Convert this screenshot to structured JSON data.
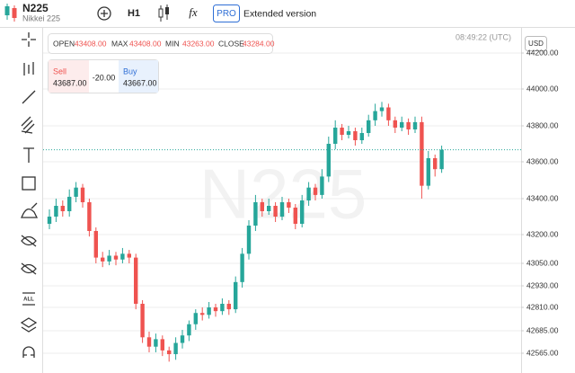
{
  "ui": {
    "symbol": "N225",
    "symbol_name": "Nikkei 225",
    "timeframe": "H1",
    "fx": "fx",
    "pro": "PRO",
    "extended": "Extended version",
    "open_label": "OPEN",
    "open": "43408.00",
    "max_label": "MAX",
    "max": "43408.00",
    "min_label": "MIN",
    "min": "43263.00",
    "close_label": "CLOSE",
    "close": "43284.00",
    "time": "08:49:22 (UTC)",
    "sell_label": "Sell",
    "sell": "43687.00",
    "spread": "-20.00",
    "buy_label": "Buy",
    "buy": "43667.00",
    "currency": "USD",
    "watermark": "N225",
    "tool_all": "ALL"
  },
  "chart_data": {
    "type": "candlestick",
    "up_color": "#26a69a",
    "down_color": "#ef5350",
    "grid": true,
    "yticks": [
      {
        "value": 44200,
        "label": "44200.00"
      },
      {
        "value": 44000,
        "label": "44000.00"
      },
      {
        "value": 43800,
        "label": "43800.00"
      },
      {
        "value": 43600,
        "label": "43600.00"
      },
      {
        "value": 43400,
        "label": "43400.00"
      },
      {
        "value": 43200,
        "label": "43200.00"
      },
      {
        "value": 43050,
        "label": "43050.00"
      },
      {
        "value": 42930,
        "label": "42930.00"
      },
      {
        "value": 42810,
        "label": "42810.00"
      },
      {
        "value": 42685,
        "label": "42685.00"
      },
      {
        "value": 42565,
        "label": "42565.00"
      }
    ],
    "open": [
      43260,
      43300,
      43360,
      43330,
      43410,
      43460,
      43380,
      43220,
      43080,
      43060,
      43090,
      43070,
      43100,
      43080,
      42830,
      42650,
      42600,
      42640,
      42580,
      42560,
      42620,
      42660,
      42720,
      42780,
      42770,
      42810,
      42790,
      42830,
      42800,
      42950,
      43100,
      43250,
      43380,
      43330,
      43360,
      43300,
      43380,
      43350,
      43260,
      43390,
      43460,
      43420,
      43520,
      43700,
      43790,
      43750,
      43770,
      43720,
      43760,
      43830,
      43880,
      43900,
      43830,
      43790,
      43820,
      43780,
      43820,
      43470,
      43620,
      43560
    ],
    "high": [
      43340,
      43400,
      43390,
      43450,
      43490,
      43480,
      43400,
      43240,
      43110,
      43120,
      43110,
      43130,
      43120,
      43100,
      42850,
      42680,
      42670,
      42660,
      42600,
      42650,
      42690,
      42740,
      42800,
      42810,
      42840,
      42830,
      42860,
      42850,
      42980,
      43130,
      43280,
      43420,
      43400,
      43400,
      43380,
      43410,
      43400,
      43370,
      43420,
      43490,
      43480,
      43560,
      43740,
      43830,
      43810,
      43800,
      43790,
      43790,
      43860,
      43920,
      43930,
      43920,
      43850,
      43850,
      43840,
      43850,
      43850,
      43660,
      43640,
      43690
    ],
    "low": [
      43230,
      43270,
      43300,
      43300,
      43380,
      43350,
      43190,
      43050,
      43030,
      43040,
      43040,
      43050,
      43050,
      42800,
      42620,
      42570,
      42570,
      42550,
      42520,
      42530,
      42590,
      42630,
      42690,
      42740,
      42750,
      42760,
      42770,
      42770,
      42780,
      42920,
      43070,
      43220,
      43300,
      43310,
      43270,
      43280,
      43320,
      43230,
      43240,
      43360,
      43390,
      43400,
      43490,
      43670,
      43720,
      43730,
      43690,
      43700,
      43740,
      43800,
      43850,
      43800,
      43760,
      43770,
      43750,
      43760,
      43400,
      43450,
      43520,
      43540
    ],
    "close": [
      43300,
      43360,
      43330,
      43410,
      43460,
      43380,
      43220,
      43080,
      43060,
      43090,
      43070,
      43100,
      43080,
      42830,
      42650,
      42600,
      42640,
      42580,
      42560,
      42620,
      42660,
      42720,
      42780,
      42770,
      42810,
      42790,
      42830,
      42800,
      42950,
      43100,
      43250,
      43380,
      43330,
      43360,
      43300,
      43380,
      43350,
      43260,
      43390,
      43460,
      43420,
      43520,
      43700,
      43790,
      43750,
      43770,
      43720,
      43760,
      43830,
      43880,
      43900,
      43830,
      43790,
      43820,
      43780,
      43820,
      43470,
      43620,
      43560,
      43667
    ]
  }
}
